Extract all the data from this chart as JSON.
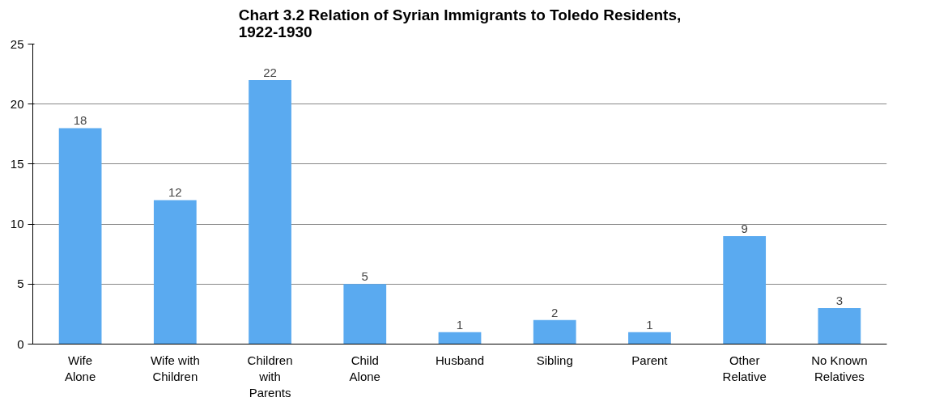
{
  "chart_data": {
    "type": "bar",
    "title": "Chart 3.2 Relation of Syrian Immigrants to Toledo Residents, 1922-1930",
    "categories": [
      "Wife Alone",
      "Wife with Children",
      "Children with Parents",
      "Child Alone",
      "Husband",
      "Sibling",
      "Parent",
      "Other Relative",
      "No Known Relatives"
    ],
    "values": [
      18,
      12,
      22,
      5,
      1,
      2,
      1,
      9,
      3
    ],
    "color": "#5aaaf0",
    "ylim": [
      0,
      25
    ],
    "yticks": [
      0,
      5,
      10,
      15,
      20,
      25
    ],
    "grid": "y",
    "data_labels": true
  }
}
